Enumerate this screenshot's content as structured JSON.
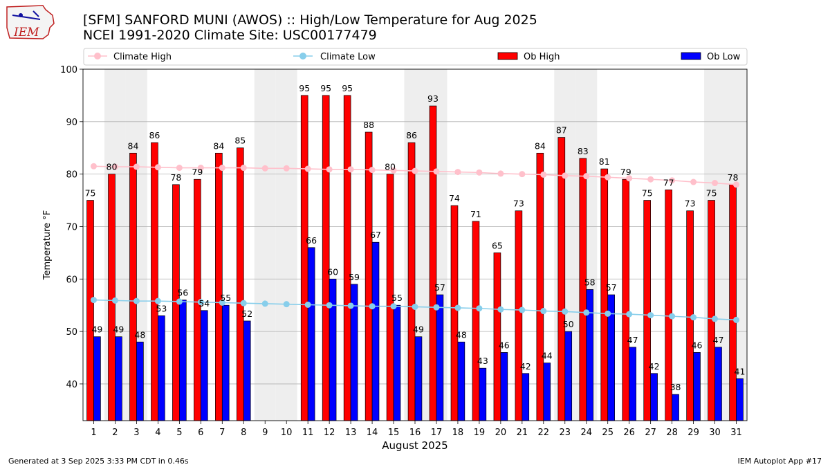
{
  "header": {
    "title_line1": "[SFM] SANFORD MUNI (AWOS) :: High/Low Temperature for Aug 2025",
    "title_line2": "NCEI 1991-2020 Climate Site: USC00177479",
    "logo_text": "IEM"
  },
  "footer": {
    "left": "Generated at 3 Sep 2025 3:33 PM CDT in 0.46s",
    "right": "IEM Autoplot App #17"
  },
  "colors": {
    "ob_high": "#ff0000",
    "ob_low": "#0000ff",
    "climate_high": "#ffc0cb",
    "climate_low": "#87ceeb",
    "weekend_shade": "#eeeeee",
    "grid": "#b0b0b0"
  },
  "chart_data": {
    "type": "bar",
    "xlabel": "August 2025",
    "ylabel": "Temperature °F",
    "ylim": [
      33,
      100
    ],
    "yticks": [
      40,
      50,
      60,
      70,
      80,
      90,
      100
    ],
    "grid": "horizontal",
    "legend_position": "top",
    "categories": [
      "1",
      "2",
      "3",
      "4",
      "5",
      "6",
      "7",
      "8",
      "9",
      "10",
      "11",
      "12",
      "13",
      "14",
      "15",
      "16",
      "17",
      "18",
      "19",
      "20",
      "21",
      "22",
      "23",
      "24",
      "25",
      "26",
      "27",
      "28",
      "29",
      "30",
      "31"
    ],
    "shaded_days": [
      2,
      3,
      9,
      10,
      16,
      17,
      23,
      24,
      30,
      31
    ],
    "series": [
      {
        "name": "Climate High",
        "kind": "line",
        "values": [
          81.5,
          81.4,
          81.4,
          81.3,
          81.2,
          81.2,
          81.2,
          81.2,
          81.1,
          81.1,
          81.0,
          80.9,
          80.9,
          80.8,
          80.7,
          80.6,
          80.5,
          80.4,
          80.3,
          80.1,
          80.0,
          79.9,
          79.7,
          79.6,
          79.4,
          79.2,
          79.0,
          78.8,
          78.5,
          78.3,
          78.0
        ]
      },
      {
        "name": "Climate Low",
        "kind": "line",
        "values": [
          56.0,
          55.9,
          55.8,
          55.8,
          55.7,
          55.6,
          55.5,
          55.4,
          55.3,
          55.2,
          55.1,
          55.0,
          54.9,
          54.8,
          54.8,
          54.7,
          54.6,
          54.5,
          54.4,
          54.2,
          54.1,
          53.9,
          53.8,
          53.6,
          53.4,
          53.3,
          53.1,
          52.9,
          52.7,
          52.4,
          52.2
        ]
      },
      {
        "name": "Ob High",
        "kind": "bar",
        "values": [
          75,
          80,
          84,
          86,
          78,
          79,
          84,
          85,
          null,
          null,
          95,
          95,
          95,
          88,
          80,
          86,
          93,
          74,
          71,
          65,
          73,
          84,
          87,
          83,
          81,
          79,
          75,
          77,
          73,
          75,
          78
        ]
      },
      {
        "name": "Ob Low",
        "kind": "bar",
        "values": [
          49,
          49,
          48,
          53,
          56,
          54,
          55,
          52,
          null,
          null,
          66,
          60,
          59,
          67,
          55,
          49,
          57,
          48,
          43,
          46,
          42,
          44,
          50,
          58,
          57,
          47,
          42,
          38,
          46,
          47,
          41
        ]
      }
    ]
  }
}
